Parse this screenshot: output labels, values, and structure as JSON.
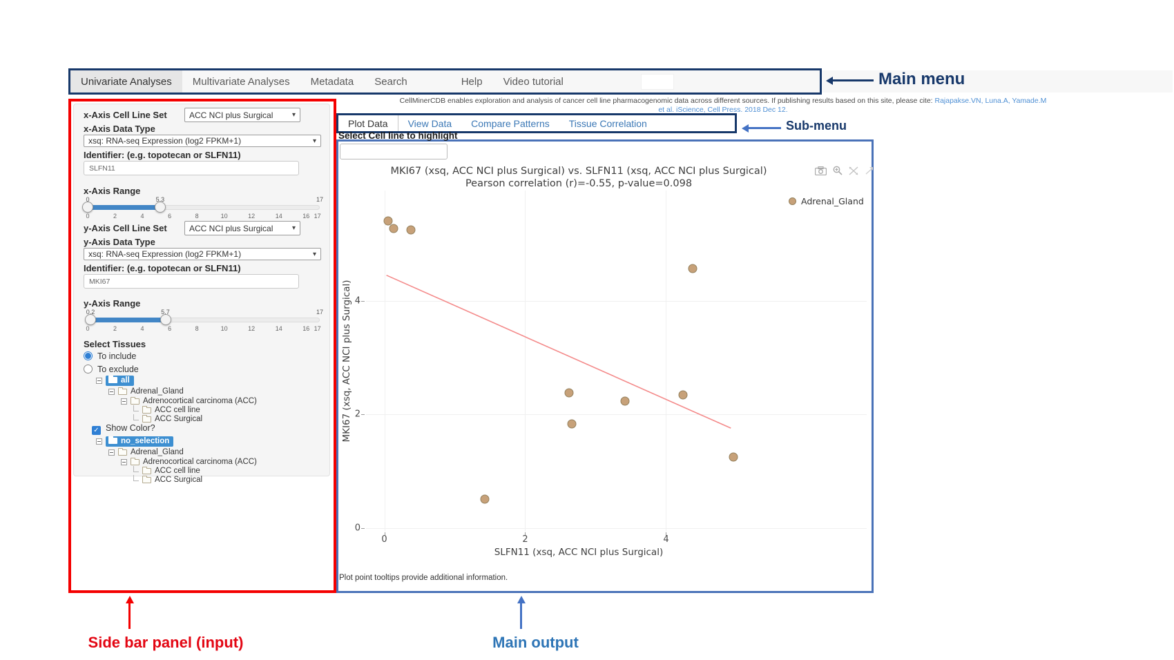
{
  "annotations": {
    "main_menu": "Main menu",
    "sub_menu": "Sub-menu",
    "sidebar": "Side bar panel (input)",
    "main_output": "Main output"
  },
  "main_menu": {
    "items": [
      {
        "label": "Univariate Analyses",
        "active": true
      },
      {
        "label": "Multivariate Analyses",
        "active": false
      },
      {
        "label": "Metadata",
        "active": false
      },
      {
        "label": "Search",
        "active": false
      },
      {
        "label": "Help",
        "active": false
      },
      {
        "label": "Video tutorial",
        "active": false
      }
    ]
  },
  "citation": {
    "text": "CellMinerCDB enables exploration and analysis of cancer cell line pharmacogenomic data across different sources. If publishing results based on this site, please cite:",
    "link": "Rajapakse.VN, Luna.A, Yamade.M",
    "line2": "et al. iScience, Cell Press. 2018 Dec 12."
  },
  "sub_menu": {
    "tabs": [
      {
        "label": "Plot Data",
        "active": true
      },
      {
        "label": "View Data",
        "active": false
      },
      {
        "label": "Compare Patterns",
        "active": false
      },
      {
        "label": "Tissue Correlation",
        "active": false
      }
    ]
  },
  "highlight": {
    "label": "Select Cell line to highlight",
    "value": ""
  },
  "sidebar": {
    "x_axis": {
      "cell_line_set_label": "x-Axis Cell Line Set",
      "cell_line_set_value": "ACC NCI plus Surgical",
      "data_type_label": "x-Axis Data Type",
      "data_type_value": "xsq: RNA-seq Expression (log2 FPKM+1)",
      "identifier_label": "Identifier: (e.g. topotecan or SLFN11)",
      "identifier_value": "SLFN11",
      "range_label": "x-Axis Range",
      "from_label": "0",
      "to_label": "5.3",
      "end_label": "17",
      "handles_pct": [
        0,
        31.2
      ],
      "ticks": [
        "0",
        "2",
        "4",
        "6",
        "8",
        "10",
        "12",
        "14",
        "16",
        "17"
      ]
    },
    "y_axis": {
      "cell_line_set_label": "y-Axis Cell Line Set",
      "cell_line_set_value": "ACC NCI plus Surgical",
      "data_type_label": "y-Axis Data Type",
      "data_type_value": "xsq: RNA-seq Expression (log2 FPKM+1)",
      "identifier_label": "Identifier: (e.g. topotecan or SLFN11)",
      "identifier_value": "MKI67",
      "range_label": "y-Axis Range",
      "from_label": "0.2",
      "to_label": "5.7",
      "end_label": "17",
      "handles_pct": [
        1.2,
        33.5
      ],
      "ticks": [
        "0",
        "2",
        "4",
        "6",
        "8",
        "10",
        "12",
        "14",
        "16",
        "17"
      ]
    },
    "tissues": {
      "heading": "Select Tissues",
      "include": "To include",
      "exclude": "To exclude",
      "show_color": "Show Color?",
      "tree_include_root": "all",
      "tree_color_root": "no_selection",
      "level1": "Adrenal_Gland",
      "level2": "Adrenocortical carcinoma (ACC)",
      "leaf1": "ACC cell line",
      "leaf2": "ACC Surgical"
    }
  },
  "plot": {
    "footer": "Plot point tooltips provide additional information.",
    "modebar_icons": [
      "camera-icon",
      "zoom-in-icon",
      "autoscale-icon",
      "reset-axes-icon"
    ]
  },
  "chart_data": {
    "type": "scatter",
    "title": "MKI67 (xsq, ACC NCI plus Surgical) vs. SLFN11 (xsq, ACC NCI plus Surgical)",
    "subtitle": "Pearson correlation (r)=-0.55, p-value=0.098",
    "xlabel": "SLFN11 (xsq, ACC NCI plus Surgical)",
    "ylabel": "MKI67 (xsq, ACC NCI plus Surgical)",
    "xlim": [
      -0.26,
      5.78
    ],
    "ylim": [
      -0.06,
      5.94
    ],
    "xticks": [
      0,
      2,
      4
    ],
    "yticks": [
      0,
      2,
      4
    ],
    "grid": true,
    "legend_position": "top-right",
    "series": [
      {
        "name": "Adrenal_Gland",
        "color": "#c7a179",
        "edge_color": "#93805d",
        "points": [
          [
            0.05,
            5.4
          ],
          [
            0.13,
            5.27
          ],
          [
            0.38,
            5.25
          ],
          [
            4.38,
            4.57
          ],
          [
            2.62,
            2.38
          ],
          [
            3.42,
            2.23
          ],
          [
            4.24,
            2.34
          ],
          [
            2.66,
            1.83
          ],
          [
            4.96,
            1.25
          ],
          [
            1.43,
            0.51
          ]
        ]
      }
    ],
    "trend": {
      "x1": 0.03,
      "y1": 4.45,
      "x2": 4.92,
      "y2": 1.76,
      "color": "#f48a8a"
    }
  }
}
